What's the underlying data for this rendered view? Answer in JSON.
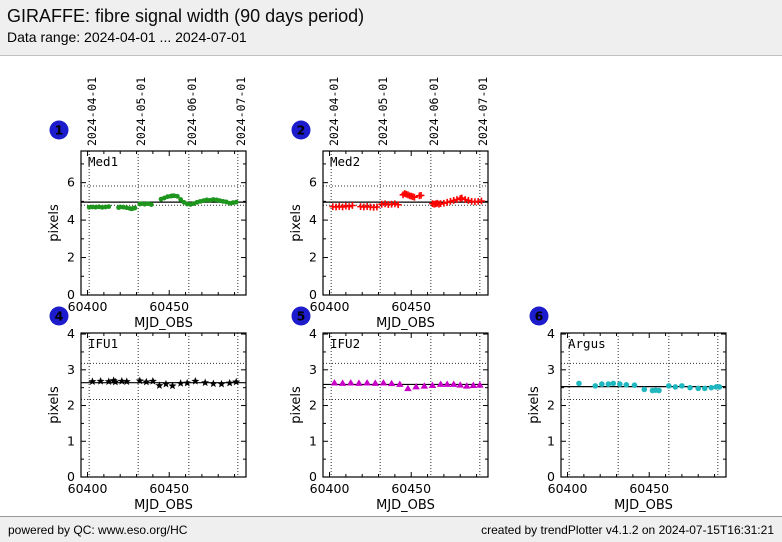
{
  "header": {
    "title": "GIRAFFE: fibre signal width (90 days period)",
    "subtitle": "Data range: 2024-04-01 ... 2024-07-01"
  },
  "footer": {
    "left": "powered by QC: www.eso.org/HC",
    "right": "created by trendPlotter v4.1.2 on 2024-07-15T16:31:21"
  },
  "colors": {
    "badge_blue": "#1c1ccd",
    "med1_green": "#1e961e",
    "med2_red": "#ff0000",
    "ifu1_black": "#000000",
    "ifu2_magenta": "#c800c8",
    "argus_cyan": "#20b8c0",
    "panel_gray": "#efefef"
  },
  "chart_data": [
    {
      "badge": "1",
      "title": "Med1",
      "type": "scatter",
      "marker": "circle",
      "color": "#1e961e",
      "xlabel": "MJD_OBS",
      "ylabel": "pixels",
      "xlim": [
        60396,
        60497
      ],
      "ylim": [
        0,
        7.69
      ],
      "x_major_ticks": [
        60400,
        60450
      ],
      "x_minor_step": 10,
      "y_major_ticks": [
        0,
        2,
        4,
        6
      ],
      "y_minor_ticks": [
        1,
        3,
        5,
        7
      ],
      "month_lines": [
        {
          "mjd": 60401,
          "label": "2024-04-01"
        },
        {
          "mjd": 60431,
          "label": "2024-05-01"
        },
        {
          "mjd": 60462,
          "label": "2024-06-01"
        },
        {
          "mjd": 60492,
          "label": "2024-07-01"
        }
      ],
      "show_date_labels": true,
      "avg_line": 4.96,
      "thresholds": [
        5.82,
        4.79
      ],
      "points": [
        [
          60401,
          4.68
        ],
        [
          60403,
          4.7
        ],
        [
          60405,
          4.69
        ],
        [
          60407,
          4.71
        ],
        [
          60409,
          4.68
        ],
        [
          60411,
          4.7
        ],
        [
          60413,
          4.72
        ],
        [
          60419,
          4.67
        ],
        [
          60420,
          4.7
        ],
        [
          60422,
          4.69
        ],
        [
          60424,
          4.66
        ],
        [
          60426,
          4.62
        ],
        [
          60427,
          4.6
        ],
        [
          60428,
          4.63
        ],
        [
          60429,
          4.65
        ],
        [
          60432,
          4.86
        ],
        [
          60433,
          4.88
        ],
        [
          60435,
          4.85
        ],
        [
          60437,
          4.88
        ],
        [
          60439,
          4.83
        ],
        [
          60445,
          5.12
        ],
        [
          60447,
          5.18
        ],
        [
          60449,
          5.25
        ],
        [
          60451,
          5.28
        ],
        [
          60452,
          5.3
        ],
        [
          60453,
          5.3
        ],
        [
          60455,
          5.27
        ],
        [
          60457,
          5.1
        ],
        [
          60459,
          4.95
        ],
        [
          60461,
          4.86
        ],
        [
          60463,
          4.84
        ],
        [
          60465,
          4.88
        ],
        [
          60467,
          4.95
        ],
        [
          60469,
          5.0
        ],
        [
          60471,
          5.04
        ],
        [
          60473,
          5.08
        ],
        [
          60475,
          5.06
        ],
        [
          60477,
          5.1
        ],
        [
          60479,
          5.08
        ],
        [
          60481,
          5.04
        ],
        [
          60483,
          5.0
        ],
        [
          60485,
          4.97
        ],
        [
          60487,
          4.9
        ],
        [
          60489,
          4.93
        ],
        [
          60491,
          4.96
        ]
      ]
    },
    {
      "badge": "2",
      "title": "Med2",
      "type": "scatter",
      "marker": "plus",
      "color": "#ff0000",
      "xlabel": "MJD_OBS",
      "ylabel": "pixels",
      "xlim": [
        60396,
        60497
      ],
      "ylim": [
        0,
        7.69
      ],
      "x_major_ticks": [
        60400,
        60450
      ],
      "x_minor_step": 10,
      "y_major_ticks": [
        0,
        2,
        4,
        6
      ],
      "y_minor_ticks": [
        1,
        3,
        5,
        7
      ],
      "month_lines": [
        {
          "mjd": 60401,
          "label": "2024-04-01"
        },
        {
          "mjd": 60431,
          "label": "2024-05-01"
        },
        {
          "mjd": 60462,
          "label": "2024-06-01"
        },
        {
          "mjd": 60492,
          "label": "2024-07-01"
        }
      ],
      "show_date_labels": true,
      "avg_line": 4.96,
      "thresholds": [
        5.82,
        4.79
      ],
      "points": [
        [
          60402,
          4.72
        ],
        [
          60404,
          4.7
        ],
        [
          60406,
          4.73
        ],
        [
          60408,
          4.7
        ],
        [
          60410,
          4.75
        ],
        [
          60412,
          4.72
        ],
        [
          60414,
          4.78
        ],
        [
          60419,
          4.72
        ],
        [
          60421,
          4.7
        ],
        [
          60423,
          4.73
        ],
        [
          60425,
          4.7
        ],
        [
          60427,
          4.68
        ],
        [
          60429,
          4.7
        ],
        [
          60432,
          4.85
        ],
        [
          60434,
          4.87
        ],
        [
          60436,
          4.83
        ],
        [
          60438,
          4.85
        ],
        [
          60440,
          4.87
        ],
        [
          60442,
          4.82
        ],
        [
          60445,
          5.35
        ],
        [
          60446,
          5.42
        ],
        [
          60447,
          5.38
        ],
        [
          60448,
          5.35
        ],
        [
          60449,
          5.3
        ],
        [
          60450,
          5.28
        ],
        [
          60451,
          5.25
        ],
        [
          60452,
          5.22
        ],
        [
          60455,
          5.3
        ],
        [
          60456,
          5.32
        ],
        [
          60463,
          4.88
        ],
        [
          60464,
          4.85
        ],
        [
          60465,
          4.87
        ],
        [
          60466,
          4.9
        ],
        [
          60467,
          4.85
        ],
        [
          60468,
          4.88
        ],
        [
          60470,
          4.9
        ],
        [
          60472,
          4.95
        ],
        [
          60474,
          5.0
        ],
        [
          60476,
          5.05
        ],
        [
          60478,
          5.1
        ],
        [
          60480,
          5.15
        ],
        [
          60481,
          5.18
        ],
        [
          60483,
          5.1
        ],
        [
          60485,
          5.05
        ],
        [
          60487,
          5.0
        ],
        [
          60489,
          4.98
        ],
        [
          60491,
          5.0
        ],
        [
          60493,
          5.02
        ]
      ]
    },
    {
      "badge": "4",
      "title": "IFU1",
      "type": "scatter",
      "marker": "star",
      "color": "#000000",
      "xlabel": "MJD_OBS",
      "ylabel": "pixels",
      "xlim": [
        60396,
        60497
      ],
      "ylim": [
        0,
        4.03
      ],
      "x_major_ticks": [
        60400,
        60450
      ],
      "x_minor_step": 10,
      "y_major_ticks": [
        0,
        1,
        2,
        3,
        4
      ],
      "y_minor_ticks": [
        0.5,
        1.5,
        2.5,
        3.5
      ],
      "month_lines": [
        {
          "mjd": 60401,
          "label": "2024-04-01"
        },
        {
          "mjd": 60431,
          "label": "2024-05-01"
        },
        {
          "mjd": 60462,
          "label": "2024-06-01"
        },
        {
          "mjd": 60492,
          "label": "2024-07-01"
        }
      ],
      "show_date_labels": false,
      "avg_line": 2.64,
      "thresholds": [
        3.18,
        2.17
      ],
      "points": [
        [
          60403,
          2.67
        ],
        [
          60408,
          2.68
        ],
        [
          60413,
          2.67
        ],
        [
          60416,
          2.7
        ],
        [
          60417,
          2.66
        ],
        [
          60421,
          2.68
        ],
        [
          60424,
          2.67
        ],
        [
          60432,
          2.69
        ],
        [
          60436,
          2.66
        ],
        [
          60440,
          2.68
        ],
        [
          60444,
          2.56
        ],
        [
          60448,
          2.6
        ],
        [
          60452,
          2.55
        ],
        [
          60457,
          2.62
        ],
        [
          60461,
          2.63
        ],
        [
          60466,
          2.68
        ],
        [
          60472,
          2.64
        ],
        [
          60477,
          2.61
        ],
        [
          60482,
          2.6
        ],
        [
          60487,
          2.63
        ],
        [
          60491,
          2.66
        ]
      ]
    },
    {
      "badge": "5",
      "title": "IFU2",
      "type": "scatter",
      "marker": "triangle",
      "color": "#c800c8",
      "xlabel": "MJD_OBS",
      "ylabel": "pixels",
      "xlim": [
        60396,
        60497
      ],
      "ylim": [
        0,
        4.03
      ],
      "x_major_ticks": [
        60400,
        60450
      ],
      "x_minor_step": 10,
      "y_major_ticks": [
        0,
        1,
        2,
        3,
        4
      ],
      "y_minor_ticks": [
        0.5,
        1.5,
        2.5,
        3.5
      ],
      "month_lines": [
        {
          "mjd": 60401,
          "label": "2024-04-01"
        },
        {
          "mjd": 60431,
          "label": "2024-05-01"
        },
        {
          "mjd": 60462,
          "label": "2024-06-01"
        },
        {
          "mjd": 60492,
          "label": "2024-07-01"
        }
      ],
      "show_date_labels": false,
      "avg_line": 2.59,
      "thresholds": [
        3.18,
        2.17
      ],
      "points": [
        [
          60403,
          2.64
        ],
        [
          60408,
          2.63
        ],
        [
          60413,
          2.64
        ],
        [
          60418,
          2.63
        ],
        [
          60423,
          2.64
        ],
        [
          60428,
          2.63
        ],
        [
          60433,
          2.64
        ],
        [
          60438,
          2.62
        ],
        [
          60443,
          2.6
        ],
        [
          60448,
          2.48
        ],
        [
          60453,
          2.53
        ],
        [
          60458,
          2.55
        ],
        [
          60463,
          2.57
        ],
        [
          60468,
          2.6
        ],
        [
          60472,
          2.6
        ],
        [
          60476,
          2.6
        ],
        [
          60480,
          2.58
        ],
        [
          60484,
          2.55
        ],
        [
          60488,
          2.57
        ],
        [
          60492,
          2.58
        ]
      ]
    },
    {
      "badge": "6",
      "title": "Argus",
      "type": "scatter",
      "marker": "circle",
      "color": "#20b8c0",
      "xlabel": "MJD_OBS",
      "ylabel": "pixels",
      "xlim": [
        60396,
        60497
      ],
      "ylim": [
        0,
        4.03
      ],
      "x_major_ticks": [
        60400,
        60450
      ],
      "x_minor_step": 10,
      "y_major_ticks": [
        0,
        1,
        2,
        3,
        4
      ],
      "y_minor_ticks": [
        0.5,
        1.5,
        2.5,
        3.5
      ],
      "month_lines": [
        {
          "mjd": 60401,
          "label": "2024-04-01"
        },
        {
          "mjd": 60431,
          "label": "2024-05-01"
        },
        {
          "mjd": 60462,
          "label": "2024-06-01"
        },
        {
          "mjd": 60492,
          "label": "2024-07-01"
        }
      ],
      "show_date_labels": false,
      "avg_line": 2.53,
      "thresholds": [
        3.18,
        2.17
      ],
      "points": [
        [
          60407,
          2.62
        ],
        [
          60417,
          2.55
        ],
        [
          60421,
          2.6
        ],
        [
          60425,
          2.6
        ],
        [
          60428,
          2.62
        ],
        [
          60432,
          2.6
        ],
        [
          60436,
          2.58
        ],
        [
          60441,
          2.57
        ],
        [
          60447,
          2.45
        ],
        [
          60452,
          2.42
        ],
        [
          60454,
          2.43
        ],
        [
          60456,
          2.42
        ],
        [
          60462,
          2.55
        ],
        [
          60466,
          2.52
        ],
        [
          60470,
          2.55
        ],
        [
          60475,
          2.5
        ],
        [
          60480,
          2.48
        ],
        [
          60484,
          2.48
        ],
        [
          60488,
          2.5
        ],
        [
          60491,
          2.52
        ],
        [
          60493,
          2.52
        ]
      ]
    }
  ]
}
